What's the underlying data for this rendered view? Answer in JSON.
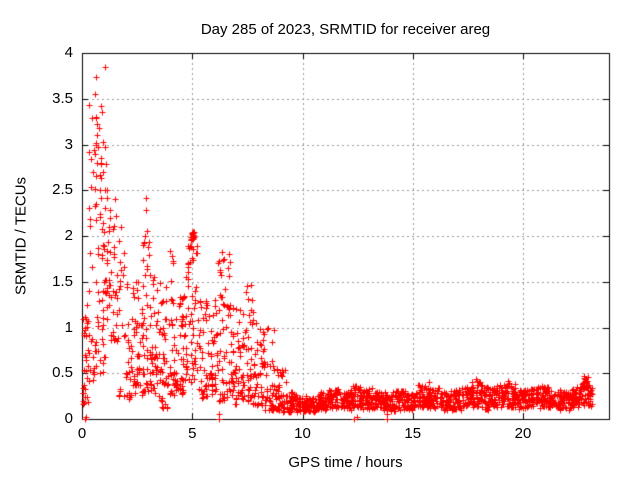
{
  "chart_data": {
    "type": "scatter",
    "title": "Day 285 of 2023, SRMTID for receiver areg",
    "xlabel": "GPS time / hours",
    "ylabel": "SRMTID / TECUs",
    "xlim": [
      0,
      23.9
    ],
    "ylim": [
      0,
      4
    ],
    "xticks": [
      0,
      5,
      10,
      15,
      20
    ],
    "yticks": [
      0,
      0.5,
      1,
      1.5,
      2,
      2.5,
      3,
      3.5,
      4
    ],
    "xtick_labels": [
      "0",
      "5",
      "10",
      "15",
      "20"
    ],
    "ytick_labels": [
      "0",
      "0.5",
      "1",
      "1.5",
      "2",
      "2.5",
      "3",
      "3.5",
      "4"
    ],
    "grid": true,
    "grid_color": "#9b9b9b",
    "grid_style": "dotted",
    "axis_color": "#000000",
    "background_color": "#ffffff",
    "legend": null,
    "marker": {
      "shape": "plus",
      "size": 7,
      "color": "#ff0000"
    },
    "description": "Dense red plus-marker scatter: high variable SRMTID amplitude (0.1-3.85 TECU) in wave-packet columns from 0-9 h GPS time, peak 3.85 near 1.05 h, saturated cluster at (5.0, 2.0), decaying after 8 h to a quiet noise band of 0.1-0.35 TECU from ~9.5 h to ~23.1 h with occasional excursions to ~0.47; isolated zero-value points near 0.2, 6.2, 12.4 and 13.85 h.",
    "series": [
      {
        "name": "SRMTID",
        "color": "#ff0000",
        "generator": {
          "seed": 285,
          "bins": [
            [
              0.03,
              0.28,
              30,
              0.12,
              1.25,
              1.3
            ],
            [
              0.28,
              0.72,
              18,
              2.1,
              3.5,
              1.3
            ],
            [
              0.28,
              0.72,
              26,
              0.4,
              2.0,
              1.5
            ],
            [
              0.72,
              1.12,
              20,
              1.9,
              3.3,
              1.5
            ],
            [
              0.72,
              1.12,
              30,
              0.5,
              1.9,
              1.2
            ],
            [
              1.12,
              1.6,
              40,
              0.85,
              2.3,
              1.4
            ],
            [
              1.6,
              2.1,
              26,
              0.25,
              2.1,
              2.2
            ],
            [
              2.1,
              2.45,
              30,
              0.2,
              1.5,
              1.6
            ],
            [
              2.45,
              2.75,
              30,
              0.25,
              1.5,
              1.4
            ],
            [
              2.75,
              3.1,
              40,
              0.3,
              2.15,
              1.7
            ],
            [
              3.1,
              3.55,
              40,
              0.25,
              1.6,
              1.4
            ],
            [
              3.55,
              3.95,
              36,
              0.12,
              1.5,
              1.5
            ],
            [
              3.95,
              4.35,
              42,
              0.25,
              1.85,
              1.6
            ],
            [
              4.35,
              4.7,
              36,
              0.25,
              1.35,
              1.4
            ],
            [
              4.7,
              5.25,
              55,
              0.4,
              2.0,
              1.3
            ],
            [
              5.25,
              5.75,
              40,
              0.22,
              1.3,
              1.4
            ],
            [
              5.75,
              6.15,
              36,
              0.2,
              1.3,
              1.5
            ],
            [
              6.15,
              6.7,
              48,
              0.2,
              1.85,
              1.7
            ],
            [
              6.7,
              7.2,
              46,
              0.15,
              1.3,
              1.5
            ],
            [
              7.2,
              7.7,
              46,
              0.2,
              1.48,
              1.6
            ],
            [
              7.7,
              8.25,
              46,
              0.15,
              1.2,
              1.6
            ],
            [
              8.25,
              8.75,
              44,
              0.1,
              1.0,
              1.8
            ],
            [
              8.75,
              9.25,
              44,
              0.08,
              0.55,
              1.4
            ],
            [
              9.25,
              9.7,
              40,
              0.07,
              0.3,
              1.1
            ],
            [
              9.7,
              10.2,
              45,
              0.08,
              0.25,
              1.0
            ],
            [
              10.2,
              10.7,
              45,
              0.08,
              0.23,
              1.0
            ],
            [
              10.7,
              11.2,
              45,
              0.1,
              0.3,
              1.0
            ],
            [
              11.2,
              11.7,
              45,
              0.12,
              0.33,
              1.1
            ],
            [
              11.7,
              12.2,
              45,
              0.1,
              0.3,
              1.0
            ],
            [
              12.2,
              12.7,
              45,
              0.12,
              0.38,
              1.1
            ],
            [
              12.7,
              13.2,
              45,
              0.1,
              0.35,
              1.0
            ],
            [
              13.2,
              13.7,
              45,
              0.12,
              0.3,
              1.0
            ],
            [
              13.7,
              14.2,
              45,
              0.08,
              0.3,
              1.1
            ],
            [
              14.2,
              14.7,
              45,
              0.1,
              0.32,
              1.0
            ],
            [
              14.7,
              15.2,
              45,
              0.1,
              0.28,
              1.0
            ],
            [
              15.2,
              15.7,
              45,
              0.12,
              0.38,
              1.1
            ],
            [
              15.7,
              16.2,
              45,
              0.12,
              0.35,
              1.0
            ],
            [
              16.2,
              16.7,
              45,
              0.1,
              0.3,
              1.0
            ],
            [
              16.7,
              17.2,
              45,
              0.1,
              0.32,
              1.0
            ],
            [
              17.2,
              17.7,
              45,
              0.12,
              0.35,
              1.0
            ],
            [
              17.7,
              18.2,
              45,
              0.12,
              0.42,
              1.1
            ],
            [
              18.2,
              18.7,
              45,
              0.1,
              0.35,
              1.0
            ],
            [
              18.7,
              19.2,
              45,
              0.12,
              0.38,
              1.0
            ],
            [
              19.2,
              19.7,
              45,
              0.12,
              0.4,
              1.1
            ],
            [
              19.7,
              20.2,
              45,
              0.1,
              0.32,
              1.0
            ],
            [
              20.2,
              20.7,
              45,
              0.12,
              0.35,
              1.0
            ],
            [
              20.7,
              21.2,
              45,
              0.12,
              0.38,
              1.0
            ],
            [
              21.2,
              21.7,
              45,
              0.1,
              0.32,
              1.0
            ],
            [
              21.7,
              22.2,
              45,
              0.1,
              0.3,
              1.0
            ],
            [
              22.2,
              22.6,
              40,
              0.12,
              0.35,
              1.0
            ],
            [
              22.6,
              23.0,
              40,
              0.15,
              0.47,
              1.1
            ],
            [
              23.0,
              23.15,
              14,
              0.12,
              0.35,
              1.0
            ]
          ],
          "cluster": {
            "x": 5.0,
            "y": 2.0,
            "n": 24,
            "dx": 0.06,
            "dy": 0.05
          },
          "points": [
            [
              1.05,
              3.85
            ],
            [
              0.63,
              3.74
            ],
            [
              0.58,
              3.55
            ],
            [
              0.85,
              3.42
            ],
            [
              0.9,
              3.35
            ],
            [
              0.62,
              3.3
            ],
            [
              0.68,
              3.22
            ],
            [
              0.75,
              3.18
            ],
            [
              0.7,
              3.1
            ],
            [
              0.65,
              3.02
            ],
            [
              0.72,
              2.97
            ],
            [
              0.6,
              2.9
            ],
            [
              0.85,
              2.85
            ],
            [
              1.5,
              2.4
            ],
            [
              2.9,
              2.42
            ],
            [
              2.88,
              2.28
            ],
            [
              1.75,
              2.1
            ],
            [
              1.7,
              1.95
            ],
            [
              6.35,
              1.82
            ],
            [
              6.45,
              1.75
            ],
            [
              7.5,
              1.45
            ],
            [
              0.15,
              0.0
            ],
            [
              0.2,
              0.02
            ],
            [
              6.2,
              0.0
            ],
            [
              6.2,
              0.05
            ],
            [
              12.35,
              0.0
            ],
            [
              12.45,
              0.02
            ],
            [
              13.85,
              0.0
            ],
            [
              13.85,
              0.06
            ],
            [
              15.75,
              0.4
            ],
            [
              17.85,
              0.44
            ],
            [
              19.3,
              0.42
            ],
            [
              22.75,
              0.47
            ],
            [
              22.8,
              0.44
            ]
          ]
        }
      }
    ]
  }
}
